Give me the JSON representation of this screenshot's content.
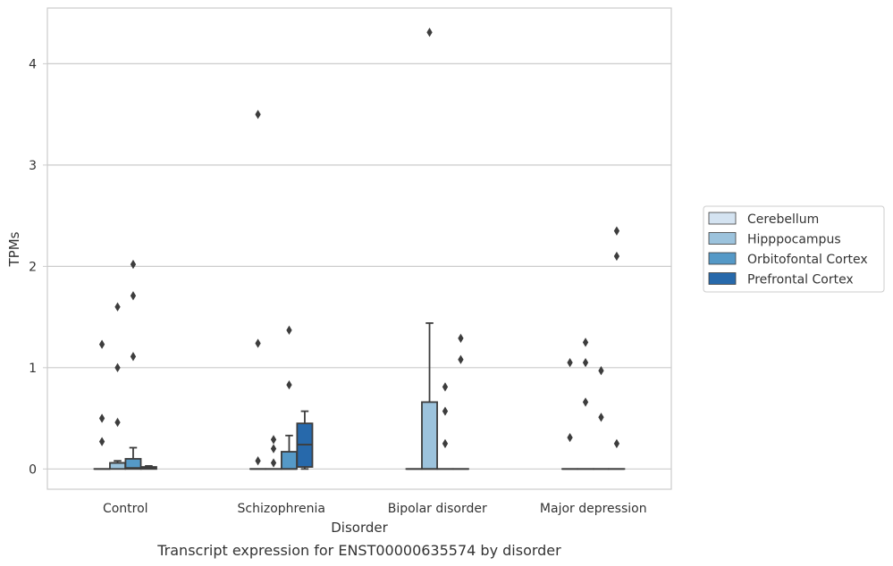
{
  "chart_data": {
    "type": "box",
    "caption": "Transcript expression for ENST00000635574 by disorder",
    "xlabel": "Disorder",
    "ylabel": "TPMs",
    "ylim": [
      -0.2,
      4.55
    ],
    "yticks": [
      0,
      1,
      2,
      3,
      4
    ],
    "grid": "horizontal",
    "legend_position": "right",
    "categories": [
      "Control",
      "Schizophrenia",
      "Bipolar disorder",
      "Major depression"
    ],
    "series": [
      {
        "name": "Cerebellum",
        "color": "#d4e3f1",
        "boxes": [
          {
            "q1": 0,
            "median": 0,
            "q3": 0,
            "whisker_low": 0,
            "whisker_high": 0,
            "outliers": [
              0.27,
              0.5,
              1.23
            ]
          },
          {
            "q1": 0,
            "median": 0,
            "q3": 0,
            "whisker_low": 0,
            "whisker_high": 0,
            "outliers": [
              0.08,
              1.24,
              3.5
            ]
          },
          {
            "q1": 0,
            "median": 0,
            "q3": 0,
            "whisker_low": 0,
            "whisker_high": 0,
            "outliers": []
          },
          {
            "q1": 0,
            "median": 0,
            "q3": 0,
            "whisker_low": 0,
            "whisker_high": 0,
            "outliers": [
              0.31,
              1.05
            ]
          }
        ]
      },
      {
        "name": "Hipppocampus",
        "color": "#9cc3dd",
        "boxes": [
          {
            "q1": 0,
            "median": 0.06,
            "q3": 0.06,
            "whisker_low": 0,
            "whisker_high": 0.08,
            "outliers": [
              0.46,
              1.0,
              1.6
            ]
          },
          {
            "q1": 0,
            "median": 0,
            "q3": 0,
            "whisker_low": 0,
            "whisker_high": 0,
            "outliers": [
              0.06,
              0.2,
              0.29
            ]
          },
          {
            "q1": 0,
            "median": 0,
            "q3": 0.66,
            "whisker_low": 0,
            "whisker_high": 1.44,
            "outliers": [
              4.31
            ]
          },
          {
            "q1": 0,
            "median": 0,
            "q3": 0,
            "whisker_low": 0,
            "whisker_high": 0,
            "outliers": [
              0.66,
              1.05,
              1.25
            ]
          }
        ]
      },
      {
        "name": "Orbitofontal Cortex",
        "color": "#5599c7",
        "boxes": [
          {
            "q1": 0,
            "median": 0.01,
            "q3": 0.1,
            "whisker_low": 0,
            "whisker_high": 0.21,
            "outliers": [
              1.11,
              1.71,
              2.02
            ]
          },
          {
            "q1": 0,
            "median": 0,
            "q3": 0.17,
            "whisker_low": 0,
            "whisker_high": 0.33,
            "outliers": [
              0.83,
              1.37
            ]
          },
          {
            "q1": 0,
            "median": 0,
            "q3": 0,
            "whisker_low": 0,
            "whisker_high": 0,
            "outliers": [
              0.25,
              0.57,
              0.81
            ]
          },
          {
            "q1": 0,
            "median": 0,
            "q3": 0,
            "whisker_low": 0,
            "whisker_high": 0,
            "outliers": [
              0.51,
              0.97
            ]
          }
        ]
      },
      {
        "name": "Prefrontal Cortex",
        "color": "#2769ab",
        "boxes": [
          {
            "q1": 0,
            "median": 0.01,
            "q3": 0.02,
            "whisker_low": 0,
            "whisker_high": 0.03,
            "outliers": []
          },
          {
            "q1": 0.02,
            "median": 0.24,
            "q3": 0.45,
            "whisker_low": 0,
            "whisker_high": 0.57,
            "outliers": []
          },
          {
            "q1": 0,
            "median": 0,
            "q3": 0,
            "whisker_low": 0,
            "whisker_high": 0,
            "outliers": [
              1.08,
              1.29
            ]
          },
          {
            "q1": 0,
            "median": 0,
            "q3": 0,
            "whisker_low": 0,
            "whisker_high": 0,
            "outliers": [
              0.25,
              2.1,
              2.35
            ]
          }
        ]
      }
    ]
  }
}
